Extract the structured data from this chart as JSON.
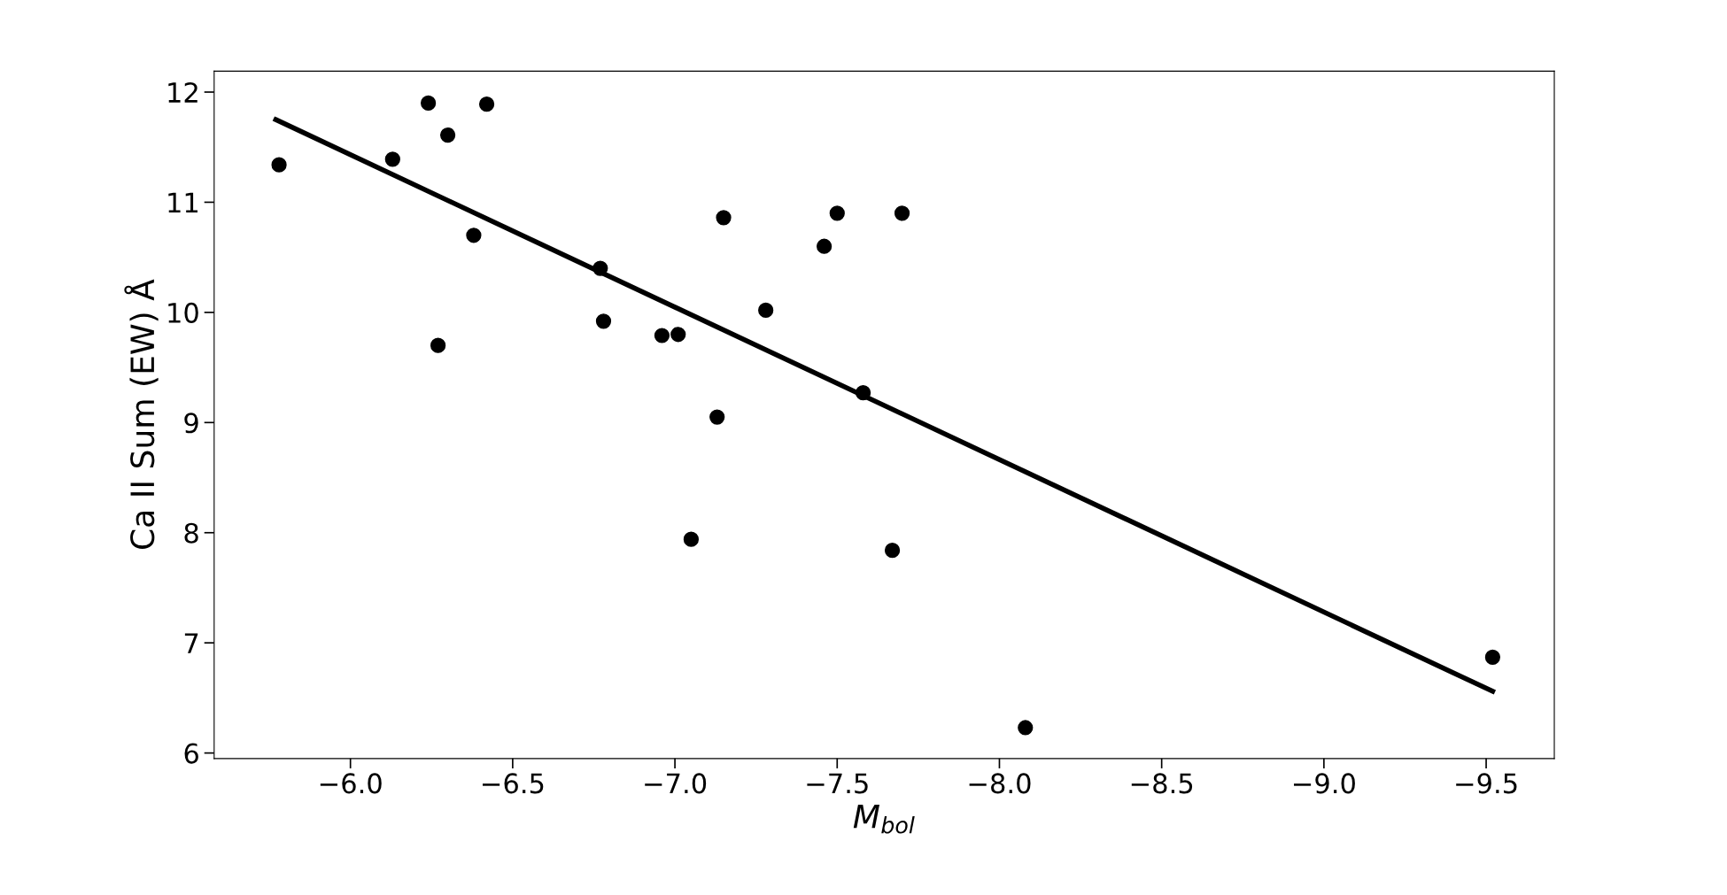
{
  "chart_data": {
    "type": "scatter",
    "xlabel": "M$_{bol}$",
    "ylabel": "Ca II Sum (EW) Å",
    "xlim": [
      -5.58,
      -9.71
    ],
    "ylim": [
      5.95,
      12.19
    ],
    "xticks": [
      {
        "value": -6.0,
        "label": "−6.0"
      },
      {
        "value": -6.5,
        "label": "−6.5"
      },
      {
        "value": -7.0,
        "label": "−7.0"
      },
      {
        "value": -7.5,
        "label": "−7.5"
      },
      {
        "value": -8.0,
        "label": "−8.0"
      },
      {
        "value": -8.5,
        "label": "−8.5"
      },
      {
        "value": -9.0,
        "label": "−9.0"
      },
      {
        "value": -9.5,
        "label": "−9.5"
      }
    ],
    "yticks": [
      6,
      7,
      8,
      9,
      10,
      11,
      12
    ],
    "grid": false,
    "series": [
      {
        "marker": "circle",
        "color": "#000000",
        "x": [
          -5.78,
          -6.13,
          -6.24,
          -6.3,
          -6.42,
          -6.38,
          -6.27,
          -6.77,
          -6.78,
          -6.96,
          -7.01,
          -7.15,
          -7.13,
          -7.05,
          -7.28,
          -7.46,
          -7.5,
          -7.7,
          -7.58,
          -7.67,
          -8.08,
          -9.52
        ],
        "values": [
          11.34,
          11.39,
          11.9,
          11.61,
          11.89,
          10.7,
          9.7,
          10.4,
          9.92,
          9.79,
          9.8,
          10.86,
          9.05,
          7.94,
          10.02,
          10.6,
          10.9,
          10.9,
          9.27,
          7.84,
          6.23,
          6.87
        ]
      },
      {
        "type": "line",
        "color": "#000000",
        "x": [
          -5.77,
          -9.52
        ],
        "values": [
          11.75,
          6.56
        ]
      }
    ]
  }
}
